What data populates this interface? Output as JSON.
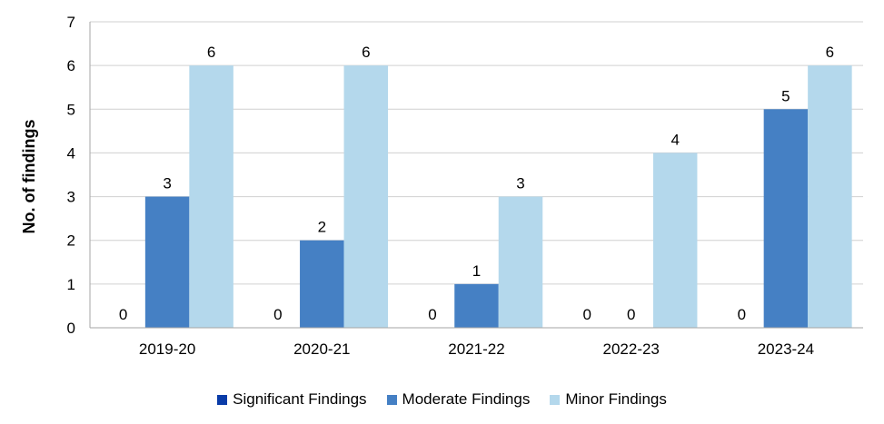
{
  "chart_data": {
    "type": "bar",
    "categories": [
      "2019-20",
      "2020-21",
      "2021-22",
      "2022-23",
      "2023-24"
    ],
    "series": [
      {
        "name": "Significant Findings",
        "color": "#0a3ca8",
        "values": [
          0,
          0,
          0,
          0,
          0
        ]
      },
      {
        "name": "Moderate Findings",
        "color": "#4580c4",
        "values": [
          3,
          2,
          1,
          0,
          5
        ]
      },
      {
        "name": "Minor Findings",
        "color": "#b4d8ec",
        "values": [
          6,
          6,
          3,
          4,
          6
        ]
      }
    ],
    "ylabel": "No. of findings",
    "xlabel": "",
    "ylim": [
      0,
      7
    ],
    "yticks": [
      0,
      1,
      2,
      3,
      4,
      5,
      6,
      7
    ],
    "grid": true,
    "legend_position": "bottom",
    "data_labels": true
  }
}
